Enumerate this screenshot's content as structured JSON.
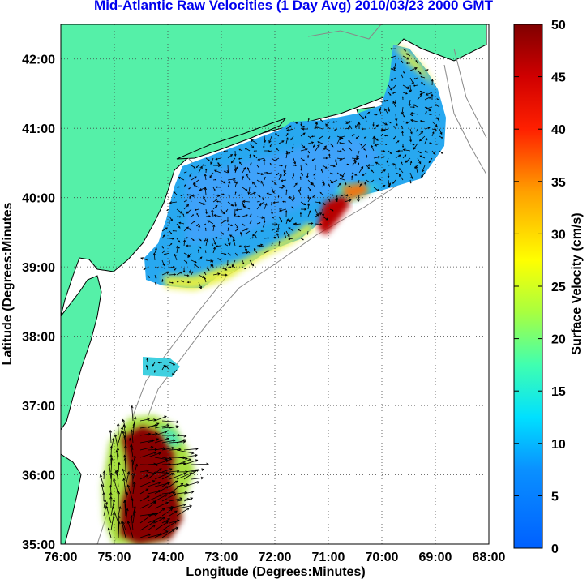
{
  "title": "Mid-Atlantic Raw Velocities (1 Day Avg) 2010/03/23 2000 GMT",
  "map": {
    "xlabel": "Longitude (Degrees:Minutes)",
    "ylabel": "Latitude (Degrees:Minutes",
    "x_ticks": [
      "76:00",
      "75:00",
      "74:00",
      "73:00",
      "72:00",
      "71:00",
      "70:00",
      "69:00",
      "68:00"
    ],
    "y_ticks": [
      "42:00",
      "41:00",
      "40:00",
      "39:00",
      "38:00",
      "37:00",
      "36:00",
      "35:00"
    ],
    "lon_range": [
      -76,
      -68
    ],
    "lat_range": [
      35,
      42.5
    ],
    "grid": "dotted",
    "land_color": "#55f0a8",
    "ocean_color": "#ffffff"
  },
  "colorbar": {
    "label": "Surface Velocity (cm/s)",
    "ticks": [
      "50",
      "45",
      "40",
      "35",
      "30",
      "25",
      "20",
      "15",
      "10",
      "5",
      "0"
    ],
    "range": [
      0,
      50
    ],
    "colormap": "jet"
  }
}
